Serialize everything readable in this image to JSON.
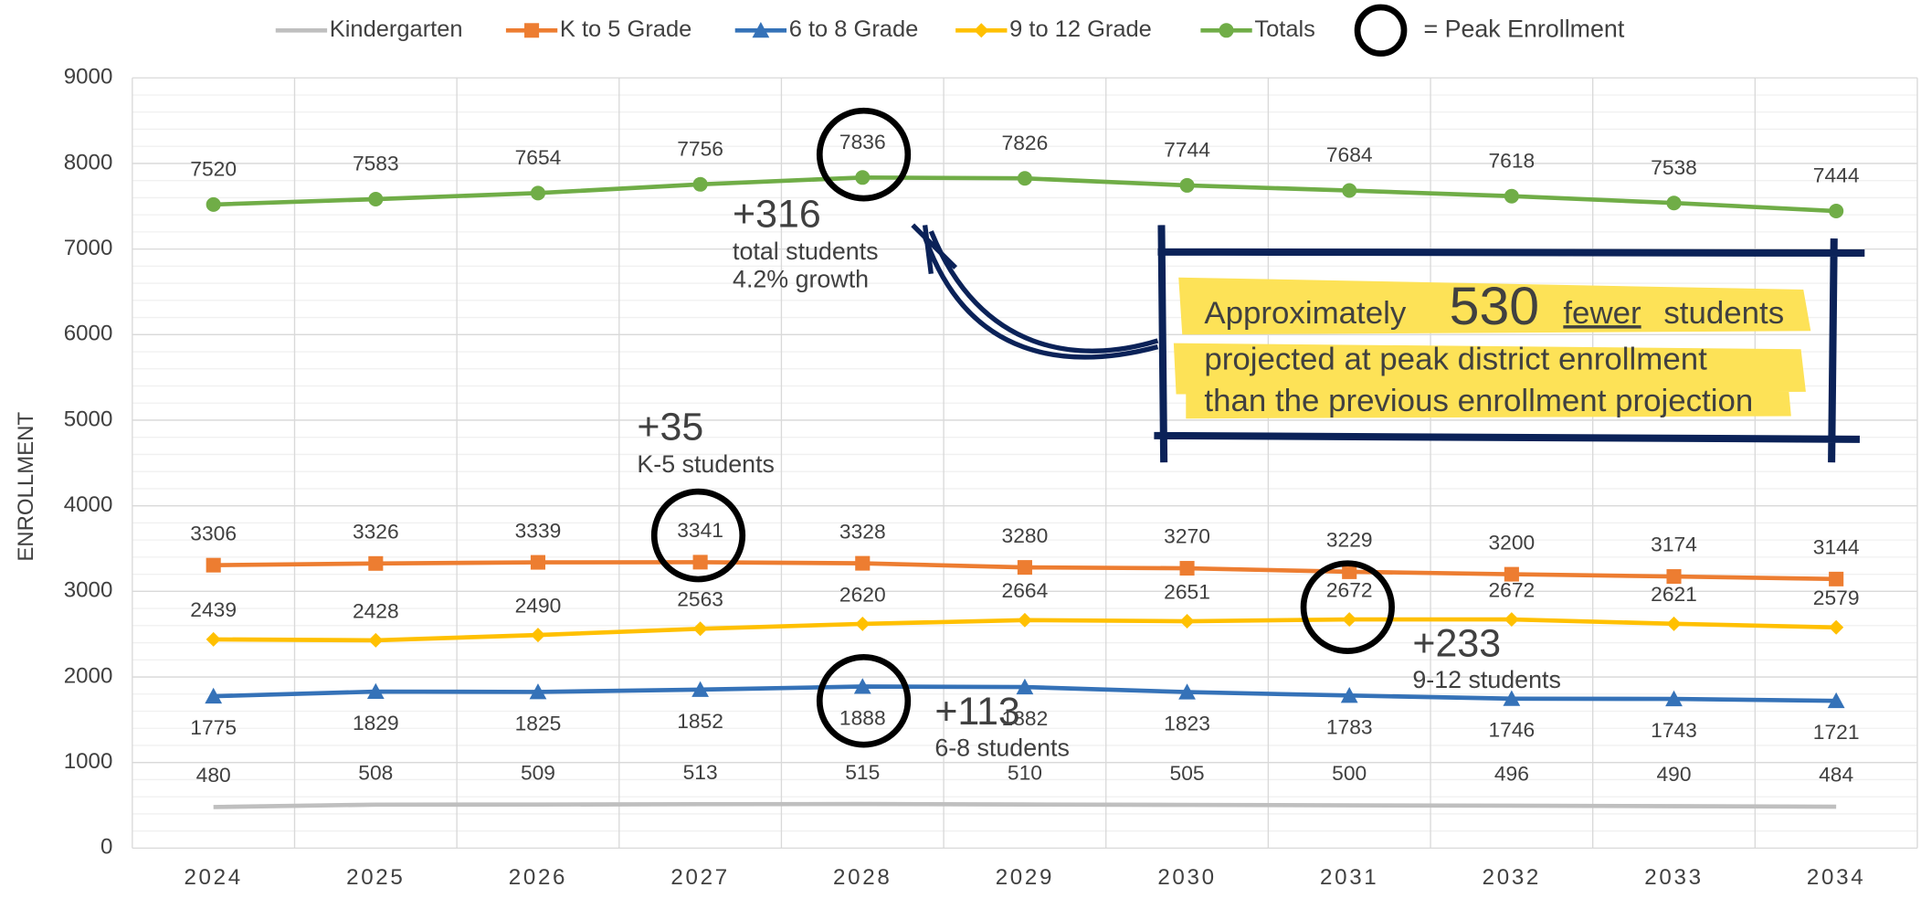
{
  "chart_data": {
    "type": "line",
    "y_label": "ENROLLMENT",
    "categories": [
      "2024",
      "2025",
      "2026",
      "2027",
      "2028",
      "2029",
      "2030",
      "2031",
      "2032",
      "2033",
      "2034"
    ],
    "series": [
      {
        "name": "Kindergarten",
        "color": "#bfbfbf",
        "marker": "none",
        "values": [
          480,
          508,
          509,
          513,
          515,
          510,
          505,
          500,
          496,
          490,
          484
        ]
      },
      {
        "name": "K to 5 Grade",
        "color": "#ed7d31",
        "marker": "square",
        "values": [
          3306,
          3326,
          3339,
          3341,
          3328,
          3280,
          3270,
          3229,
          3200,
          3174,
          3144
        ]
      },
      {
        "name": "6 to 8 Grade",
        "color": "#3572b8",
        "marker": "triangle",
        "values": [
          1775,
          1829,
          1825,
          1852,
          1888,
          1882,
          1823,
          1783,
          1746,
          1743,
          1721
        ]
      },
      {
        "name": "9 to 12 Grade",
        "color": "#ffc000",
        "marker": "diamond",
        "values": [
          2439,
          2428,
          2490,
          2563,
          2620,
          2664,
          2651,
          2672,
          2672,
          2621,
          2579
        ]
      },
      {
        "name": "Totals",
        "color": "#70ad47",
        "marker": "circle",
        "values": [
          7520,
          7583,
          7654,
          7756,
          7836,
          7826,
          7744,
          7684,
          7618,
          7538,
          7444
        ]
      }
    ],
    "ylim": [
      0,
      9000
    ],
    "yticks": [
      0,
      1000,
      2000,
      3000,
      4000,
      5000,
      6000,
      7000,
      8000,
      9000
    ],
    "grid": true,
    "legend_extra": "= Peak Enrollment",
    "annotations": {
      "totals": {
        "big": "+316",
        "line1": "total students",
        "line2": "4.2% growth"
      },
      "k5": {
        "big": "+35",
        "line1": "K-5 students"
      },
      "g68": {
        "big": "+113",
        "line1": "6-8 students"
      },
      "g912": {
        "big": "+233",
        "line1": "9-12 students"
      },
      "callout": {
        "pre": "Approximately",
        "number": "530",
        "fewer": "fewer ",
        "post": "students",
        "line2": "projected at peak district enrollment",
        "line3": "than the previous enrollment projection"
      }
    }
  }
}
